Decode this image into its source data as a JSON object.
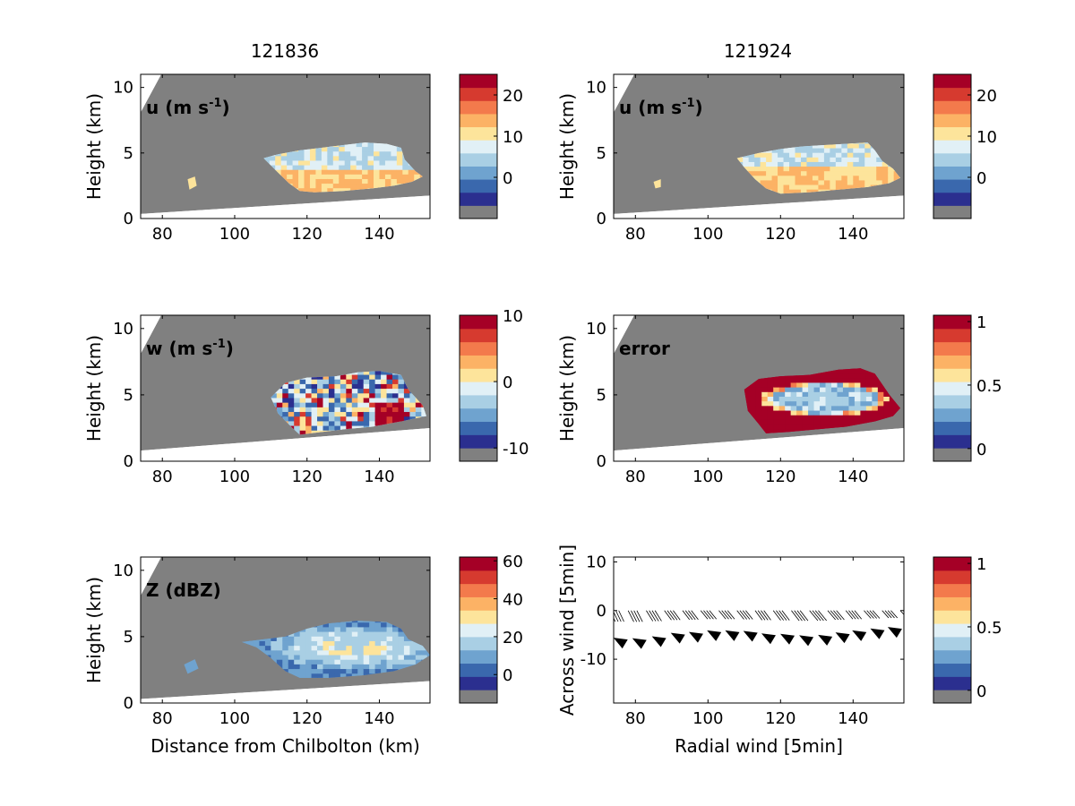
{
  "column_titles": [
    "121836",
    "121924"
  ],
  "colormap": [
    "#808080",
    "#2b2f8f",
    "#3a68ad",
    "#6fa3cf",
    "#a9cfe4",
    "#e1f0f6",
    "#fde49b",
    "#fcb265",
    "#f37a4c",
    "#d63a2f",
    "#a50026"
  ],
  "background": {
    "fill": "#808080",
    "below_fill": "#ffffff"
  },
  "chart_data": [
    {
      "type": "heatmap",
      "id": "u1",
      "annotation": "u (m s",
      "annotation_sup": "-1",
      "annotation_tail": ")",
      "xlabel": "",
      "ylabel": "Height (km)",
      "xlim": [
        74,
        154
      ],
      "ylim": [
        0,
        11
      ],
      "xticks": [
        "80",
        "100",
        "120",
        "140"
      ],
      "yticks": [
        "0",
        "5",
        "10"
      ],
      "colorbar": {
        "ticks": [
          "20",
          "10",
          "0"
        ],
        "tick_values": [
          20,
          10,
          0
        ],
        "range": [
          -10,
          25
        ]
      },
      "echo": [
        [
          108,
          4.6
        ],
        [
          112,
          4.9
        ],
        [
          118,
          5.2
        ],
        [
          124,
          5.4
        ],
        [
          130,
          5.6
        ],
        [
          136,
          5.8
        ],
        [
          142,
          5.7
        ],
        [
          146,
          5.4
        ],
        [
          147,
          4.5
        ],
        [
          150,
          3.6
        ],
        [
          152,
          3.2
        ],
        [
          149,
          2.8
        ],
        [
          144,
          2.5
        ],
        [
          138,
          2.3
        ],
        [
          130,
          2.1
        ],
        [
          122,
          2.0
        ],
        [
          118,
          2.1
        ],
        [
          115,
          2.7
        ],
        [
          112,
          3.5
        ]
      ],
      "small_echo": [
        [
          87,
          3.0
        ],
        [
          89,
          3.2
        ],
        [
          89.5,
          2.5
        ],
        [
          87.5,
          2.2
        ]
      ]
    },
    {
      "type": "heatmap",
      "id": "u2",
      "annotation": "u (m s",
      "annotation_sup": "-1",
      "annotation_tail": ")",
      "xlabel": "",
      "ylabel": "Height (km)",
      "xlim": [
        74,
        154
      ],
      "ylim": [
        0,
        11
      ],
      "xticks": [
        "80",
        "100",
        "120",
        "140"
      ],
      "yticks": [
        "0",
        "5",
        "10"
      ],
      "colorbar": {
        "ticks": [
          "20",
          "10",
          "0"
        ],
        "tick_values": [
          20,
          10,
          0
        ],
        "range": [
          -10,
          25
        ]
      },
      "echo": [
        [
          108,
          4.6
        ],
        [
          114,
          5.0
        ],
        [
          120,
          5.3
        ],
        [
          126,
          5.5
        ],
        [
          132,
          5.6
        ],
        [
          138,
          5.7
        ],
        [
          144,
          5.8
        ],
        [
          146,
          5.2
        ],
        [
          148,
          4.4
        ],
        [
          151,
          3.8
        ],
        [
          153,
          3.1
        ],
        [
          150,
          2.7
        ],
        [
          144,
          2.4
        ],
        [
          136,
          2.2
        ],
        [
          128,
          2.0
        ],
        [
          120,
          1.9
        ],
        [
          116,
          2.3
        ],
        [
          113,
          3.0
        ],
        [
          110,
          3.9
        ]
      ],
      "small_echo": [
        [
          85,
          2.8
        ],
        [
          87,
          3.0
        ],
        [
          87,
          2.4
        ],
        [
          85.5,
          2.3
        ]
      ]
    },
    {
      "type": "heatmap",
      "id": "w",
      "annotation": "w (m s",
      "annotation_sup": "-1",
      "annotation_tail": ")",
      "xlabel": "",
      "ylabel": "Height (km)",
      "xlim": [
        74,
        154
      ],
      "ylim": [
        0,
        11
      ],
      "xticks": [
        "80",
        "100",
        "120",
        "140"
      ],
      "yticks": [
        "0",
        "5",
        "10"
      ],
      "colorbar": {
        "ticks": [
          "10",
          "0",
          "-10"
        ],
        "tick_values": [
          10,
          0,
          -10
        ],
        "range": [
          -12,
          10
        ]
      },
      "echo": [
        [
          110,
          4.8
        ],
        [
          114,
          5.9
        ],
        [
          120,
          6.3
        ],
        [
          128,
          6.4
        ],
        [
          134,
          6.7
        ],
        [
          140,
          6.8
        ],
        [
          146,
          6.5
        ],
        [
          148,
          5.4
        ],
        [
          152,
          4.2
        ],
        [
          153,
          3.4
        ],
        [
          146,
          3.0
        ],
        [
          138,
          2.6
        ],
        [
          130,
          2.4
        ],
        [
          124,
          2.2
        ],
        [
          118,
          2.0
        ],
        [
          116,
          2.5
        ],
        [
          112,
          3.6
        ]
      ],
      "small_echo": []
    },
    {
      "type": "heatmap",
      "id": "err",
      "annotation": "error",
      "annotation_sup": "",
      "annotation_tail": "",
      "xlabel": "",
      "ylabel": "Height (km)",
      "xlim": [
        74,
        154
      ],
      "ylim": [
        0,
        11
      ],
      "xticks": [
        "80",
        "100",
        "120",
        "140"
      ],
      "yticks": [
        "0",
        "5",
        "10"
      ],
      "colorbar": {
        "ticks": [
          "1",
          "0.5",
          "0"
        ],
        "tick_values": [
          1,
          0.5,
          0
        ],
        "range": [
          -0.1,
          1.05
        ]
      },
      "echo": [
        [
          110,
          5.4
        ],
        [
          114,
          6.2
        ],
        [
          120,
          6.4
        ],
        [
          128,
          6.5
        ],
        [
          136,
          6.9
        ],
        [
          142,
          7.0
        ],
        [
          146,
          6.6
        ],
        [
          148,
          5.8
        ],
        [
          150,
          5.0
        ],
        [
          153,
          4.0
        ],
        [
          151,
          3.4
        ],
        [
          146,
          3.0
        ],
        [
          138,
          2.6
        ],
        [
          130,
          2.4
        ],
        [
          122,
          2.2
        ],
        [
          116,
          2.1
        ],
        [
          114,
          2.8
        ],
        [
          111,
          3.8
        ]
      ],
      "small_echo": []
    },
    {
      "type": "heatmap",
      "id": "z",
      "annotation": "Z (dBZ)",
      "annotation_sup": "",
      "annotation_tail": "",
      "xlabel": "Distance from Chilbolton (km)",
      "ylabel": "Height (km)",
      "xlim": [
        74,
        154
      ],
      "ylim": [
        0,
        11
      ],
      "xticks": [
        "80",
        "100",
        "120",
        "140"
      ],
      "yticks": [
        "0",
        "5",
        "10"
      ],
      "colorbar": {
        "ticks": [
          "60",
          "40",
          "20",
          "0"
        ],
        "tick_values": [
          60,
          40,
          20,
          0
        ],
        "range": [
          -15,
          62
        ]
      },
      "echo": [
        [
          102,
          4.6
        ],
        [
          108,
          4.8
        ],
        [
          114,
          5.0
        ],
        [
          120,
          5.6
        ],
        [
          126,
          6.0
        ],
        [
          134,
          6.2
        ],
        [
          142,
          6.1
        ],
        [
          146,
          5.6
        ],
        [
          148,
          4.8
        ],
        [
          152,
          4.3
        ],
        [
          154,
          3.6
        ],
        [
          150,
          2.9
        ],
        [
          144,
          2.4
        ],
        [
          136,
          2.1
        ],
        [
          126,
          1.9
        ],
        [
          118,
          1.9
        ],
        [
          114,
          2.4
        ],
        [
          110,
          3.4
        ],
        [
          106,
          4.2
        ]
      ],
      "small_echo": [
        [
          86,
          2.9
        ],
        [
          89,
          3.3
        ],
        [
          90,
          2.6
        ],
        [
          87,
          2.2
        ]
      ]
    },
    {
      "type": "scatter",
      "id": "vec",
      "annotation": "",
      "annotation_sup": "",
      "annotation_tail": "",
      "xlabel": "Radial wind [5min]",
      "ylabel": "Across wind [5min]",
      "xlim": [
        74,
        154
      ],
      "ylim": [
        -19,
        11
      ],
      "xticks": [
        "80",
        "100",
        "120",
        "140"
      ],
      "yticks": [
        "-10",
        "0",
        "10"
      ],
      "colorbar": {
        "ticks": [
          "1",
          "0.5",
          "0"
        ],
        "tick_values": [
          1,
          0.5,
          0
        ],
        "range": [
          -0.1,
          1.05
        ]
      },
      "vectors": {
        "x": [
          74,
          79,
          84,
          89,
          94,
          99,
          104,
          109,
          114,
          119,
          124,
          129,
          134,
          139,
          144,
          149,
          154
        ],
        "y": [
          0,
          0,
          0,
          0,
          0,
          0,
          0,
          0,
          0,
          0,
          0,
          0,
          0,
          0,
          0,
          0,
          0
        ],
        "u": [
          1.2,
          1.3,
          1.5,
          1.6,
          1.6,
          1.6,
          1.6,
          1.6,
          1.6,
          1.7,
          1.8,
          1.9,
          1.8,
          1.6,
          1.6,
          1.5,
          1.4
        ],
        "v": [
          -6.5,
          -6.6,
          -6.2,
          -5.5,
          -5.3,
          -5.0,
          -5.0,
          -5.1,
          -5.6,
          -5.7,
          -6.0,
          -5.9,
          -5.4,
          -5.0,
          -4.6,
          -4.3,
          -3.9
        ]
      },
      "small_echo": []
    }
  ]
}
